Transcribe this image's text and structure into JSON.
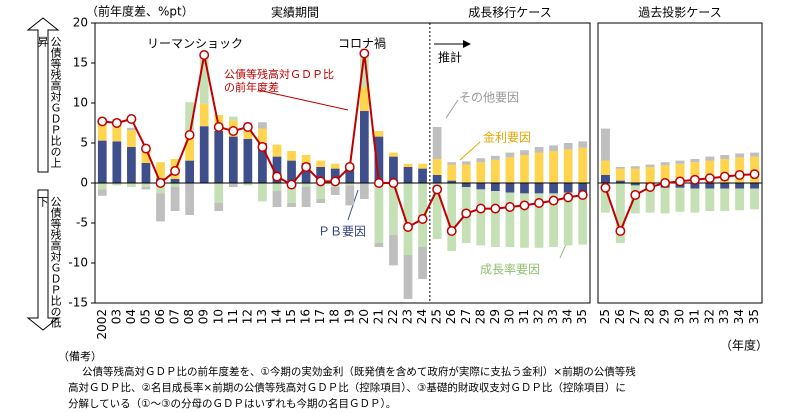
{
  "labels": {
    "side_up": "公債等残高対ＧＤＰ比の上昇",
    "side_down": "公債等残高対ＧＤＰ比の低下",
    "x_unit": "（年度）"
  },
  "notes": {
    "heading": "（備考）",
    "lines": [
      "公債等残高対ＧＤＰ比の前年度差を、①今期の実効金利（既発債を含めて政府が実際に支払う金利）×前期の公債等残",
      "高対ＧＤＰ比、②名目成長率×前期の公債等残高対ＧＤＰ比（控除項目）、③基礎的財政収支対ＧＤＰ比（控除項目）に",
      "分解している（①～③の分母のＧＤＰはいずれも今期の名目ＧＤＰ）。"
    ]
  },
  "chart_data": [
    {
      "type": "bar",
      "y_label": "（前年度差、%pt）",
      "sections": [
        "実績期間",
        "成長移行ケース"
      ],
      "projection_label": "推計",
      "annotations": [
        "リーマンショック",
        "コロナ禍"
      ],
      "categories": [
        "2002",
        "03",
        "04",
        "05",
        "06",
        "07",
        "08",
        "09",
        "10",
        "11",
        "12",
        "13",
        "14",
        "15",
        "16",
        "17",
        "18",
        "19",
        "20",
        "21",
        "22",
        "23",
        "24",
        "25",
        "26",
        "27",
        "28",
        "29",
        "30",
        "31",
        "32",
        "33",
        "34",
        "35"
      ],
      "ylim": [
        -15,
        20
      ],
      "yticks": [
        -15,
        -10,
        -5,
        0,
        5,
        10,
        15,
        20
      ],
      "series": [
        {
          "name": "ＰＢ要因",
          "type": "bar",
          "color": "#3f4f8c",
          "values": [
            5.3,
            5.2,
            4.5,
            2.5,
            0.6,
            0.5,
            2.8,
            7.1,
            6.5,
            5.8,
            5.5,
            5.0,
            3.3,
            2.8,
            2.5,
            2.0,
            1.8,
            2.0,
            9.0,
            5.8,
            3.3,
            2.0,
            1.8,
            1.0,
            0.3,
            -0.5,
            -0.8,
            -1.0,
            -1.2,
            -1.3,
            -1.3,
            -1.3,
            -1.2,
            -1.2
          ]
        },
        {
          "name": "金利要因",
          "type": "bar",
          "color": "#ffd54f",
          "values": [
            2.5,
            2.3,
            2.1,
            2.0,
            2.0,
            2.5,
            3.0,
            2.8,
            2.0,
            2.0,
            1.8,
            1.8,
            1.5,
            1.2,
            1.0,
            0.8,
            0.6,
            0.5,
            3.0,
            0.7,
            0.5,
            0.4,
            0.6,
            2.0,
            2.0,
            2.3,
            2.6,
            2.9,
            3.2,
            3.5,
            3.8,
            4.0,
            4.2,
            4.4
          ]
        },
        {
          "name": "成長率要因",
          "type": "bar",
          "color": "#c5e0b4",
          "values": [
            -0.8,
            -0.3,
            -0.5,
            -0.5,
            -1.3,
            -0.5,
            4.3,
            6.0,
            -2.5,
            0.5,
            -0.3,
            -2.3,
            -1.0,
            -2.5,
            -0.5,
            -2.0,
            -0.5,
            -0.3,
            4.0,
            -7.5,
            -6.5,
            -9.0,
            -8.0,
            -7.0,
            -8.5,
            -7.0,
            -7.0,
            -7.0,
            -6.8,
            -6.8,
            -6.8,
            -6.7,
            -6.6,
            -6.5
          ]
        },
        {
          "name": "その他要因",
          "type": "bar",
          "color": "#bfbfbf",
          "values": [
            -0.8,
            0.5,
            0.3,
            -0.3,
            -3.5,
            -3.0,
            -4.0,
            0.3,
            -1.0,
            -0.5,
            0.3,
            0.8,
            -2.0,
            -0.5,
            -2.5,
            -0.5,
            -1.0,
            -2.5,
            -2.0,
            -0.5,
            -3.8,
            -5.5,
            -4.0,
            4.0,
            0.3,
            0.4,
            0.5,
            0.5,
            0.6,
            0.6,
            0.7,
            0.7,
            0.8,
            0.8
          ]
        },
        {
          "name": "公債等残高対ＧＤＰ比の前年度差",
          "type": "line",
          "color": "#c00000",
          "values": [
            7.7,
            7.5,
            8.0,
            4.3,
            0.0,
            1.5,
            6.0,
            16.0,
            7.0,
            6.5,
            7.0,
            4.5,
            0.8,
            -0.2,
            2.0,
            0.2,
            0.2,
            2.0,
            16.2,
            0.0,
            0.0,
            -5.5,
            -4.5,
            -0.8,
            -6.0,
            -3.8,
            -3.2,
            -3.2,
            -3.0,
            -2.8,
            -2.5,
            -2.2,
            -1.8,
            -1.5
          ]
        }
      ]
    },
    {
      "type": "bar",
      "title": "過去投影ケース",
      "categories": [
        "25",
        "26",
        "27",
        "28",
        "29",
        "30",
        "31",
        "32",
        "33",
        "34",
        "35"
      ],
      "ylim": [
        -15,
        20
      ],
      "series": [
        {
          "type": "bar",
          "color": "#3f4f8c",
          "values": [
            1.0,
            0.3,
            -0.3,
            -0.5,
            -0.6,
            -0.6,
            -0.7,
            -0.7,
            -0.7,
            -0.7,
            -0.7
          ]
        },
        {
          "type": "bar",
          "color": "#ffd54f",
          "values": [
            1.8,
            1.5,
            1.8,
            2.0,
            2.2,
            2.4,
            2.6,
            2.8,
            3.0,
            3.2,
            3.3
          ]
        },
        {
          "type": "bar",
          "color": "#c5e0b4",
          "values": [
            -3.7,
            -7.5,
            -3.5,
            -3.2,
            -3.2,
            -3.0,
            -3.0,
            -2.8,
            -2.8,
            -2.7,
            -2.6
          ]
        },
        {
          "type": "bar",
          "color": "#bfbfbf",
          "values": [
            4.0,
            0.2,
            0.3,
            0.3,
            0.4,
            0.4,
            0.4,
            0.5,
            0.5,
            0.5,
            0.5
          ]
        },
        {
          "type": "line",
          "color": "#c00000",
          "values": [
            -0.6,
            -6.0,
            -1.5,
            -0.5,
            0.0,
            0.2,
            0.4,
            0.6,
            0.8,
            1.0,
            1.1
          ]
        }
      ]
    }
  ]
}
